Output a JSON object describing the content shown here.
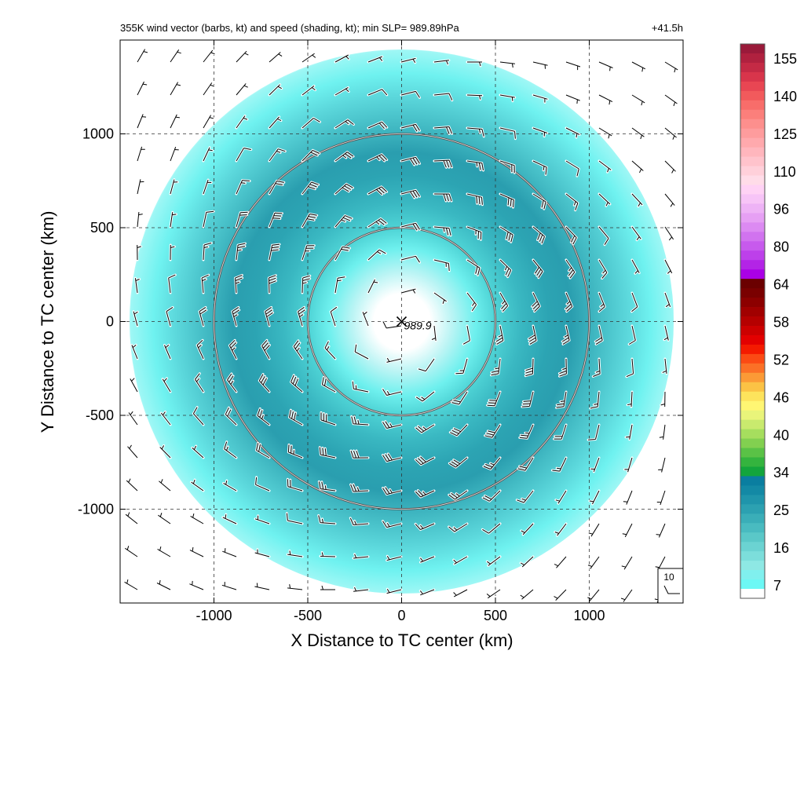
{
  "chart_data": {
    "type": "heatmap",
    "title": "355K wind vector (barbs, kt) and speed (shading, kt); min SLP= 989.89hPa",
    "forecast_hour": "+41.5h",
    "xlabel": "X Distance to TC center (km)",
    "ylabel": "Y Distance to TC center (km)",
    "xlim": [
      -1500,
      1500
    ],
    "ylim": [
      -1500,
      1500
    ],
    "xticks": [
      -1000,
      -500,
      0,
      500,
      1000
    ],
    "yticks": [
      -1000,
      -500,
      0,
      500,
      1000
    ],
    "xtick_labels": [
      "-1000",
      "-500",
      "0",
      "500",
      "1000"
    ],
    "ytick_labels": [
      "-1000",
      "-500",
      "0",
      "500",
      "1000"
    ],
    "grid": true,
    "grid_style": "dashed",
    "center": {
      "x": 0,
      "y": 0,
      "marker": "x",
      "label": "989.9"
    },
    "range_rings_km": [
      500,
      1000
    ],
    "wind_speed_field": {
      "annulus_peak_radius_km": 750,
      "annulus_peak_speed_kt": 30,
      "eye_speed_kt": 7,
      "outer_edge_radius_km": 1450
    },
    "barb_reference": {
      "label": "10",
      "value_kt": 10
    },
    "colorbar": {
      "tick_labels": [
        "155",
        "140",
        "125",
        "110",
        "96",
        "80",
        "64",
        "58",
        "52",
        "46",
        "40",
        "34",
        "25",
        "16",
        "7"
      ],
      "colors": [
        "#9a1a3a",
        "#b0213f",
        "#c42a45",
        "#d8354b",
        "#e84653",
        "#f25a5c",
        "#f86d6a",
        "#fb7f7b",
        "#fd8f8d",
        "#fe9c9d",
        "#ffa9ad",
        "#ffb6bd",
        "#ffc3cc",
        "#ffd0da",
        "#ffdce8",
        "#ffd2f5",
        "#f7c4f7",
        "#eeb3f6",
        "#e6a0f4",
        "#dc8af2",
        "#d173ef",
        "#c75aed",
        "#bd40ea",
        "#b324e6",
        "#aa00e6",
        "#6b0000",
        "#7a0000",
        "#8c0000",
        "#a10000",
        "#b50000",
        "#cc0000",
        "#e30000",
        "#f41a00",
        "#fb4a14",
        "#fb7026",
        "#fb9a36",
        "#fbc245",
        "#fde35c",
        "#fff673",
        "#e9f47a",
        "#c9ea6e",
        "#a6de5e",
        "#82d050",
        "#5ac246",
        "#34b43e",
        "#13a53c",
        "#0a7ea0",
        "#1389a5",
        "#1f95ab",
        "#2ca1b1",
        "#3aaeb8",
        "#49bbc0",
        "#5ac8c8",
        "#6bd3d2",
        "#7cdedb",
        "#8ee8e4",
        "#80f0ee",
        "#6cf8f5",
        "#ffffff"
      ]
    }
  }
}
